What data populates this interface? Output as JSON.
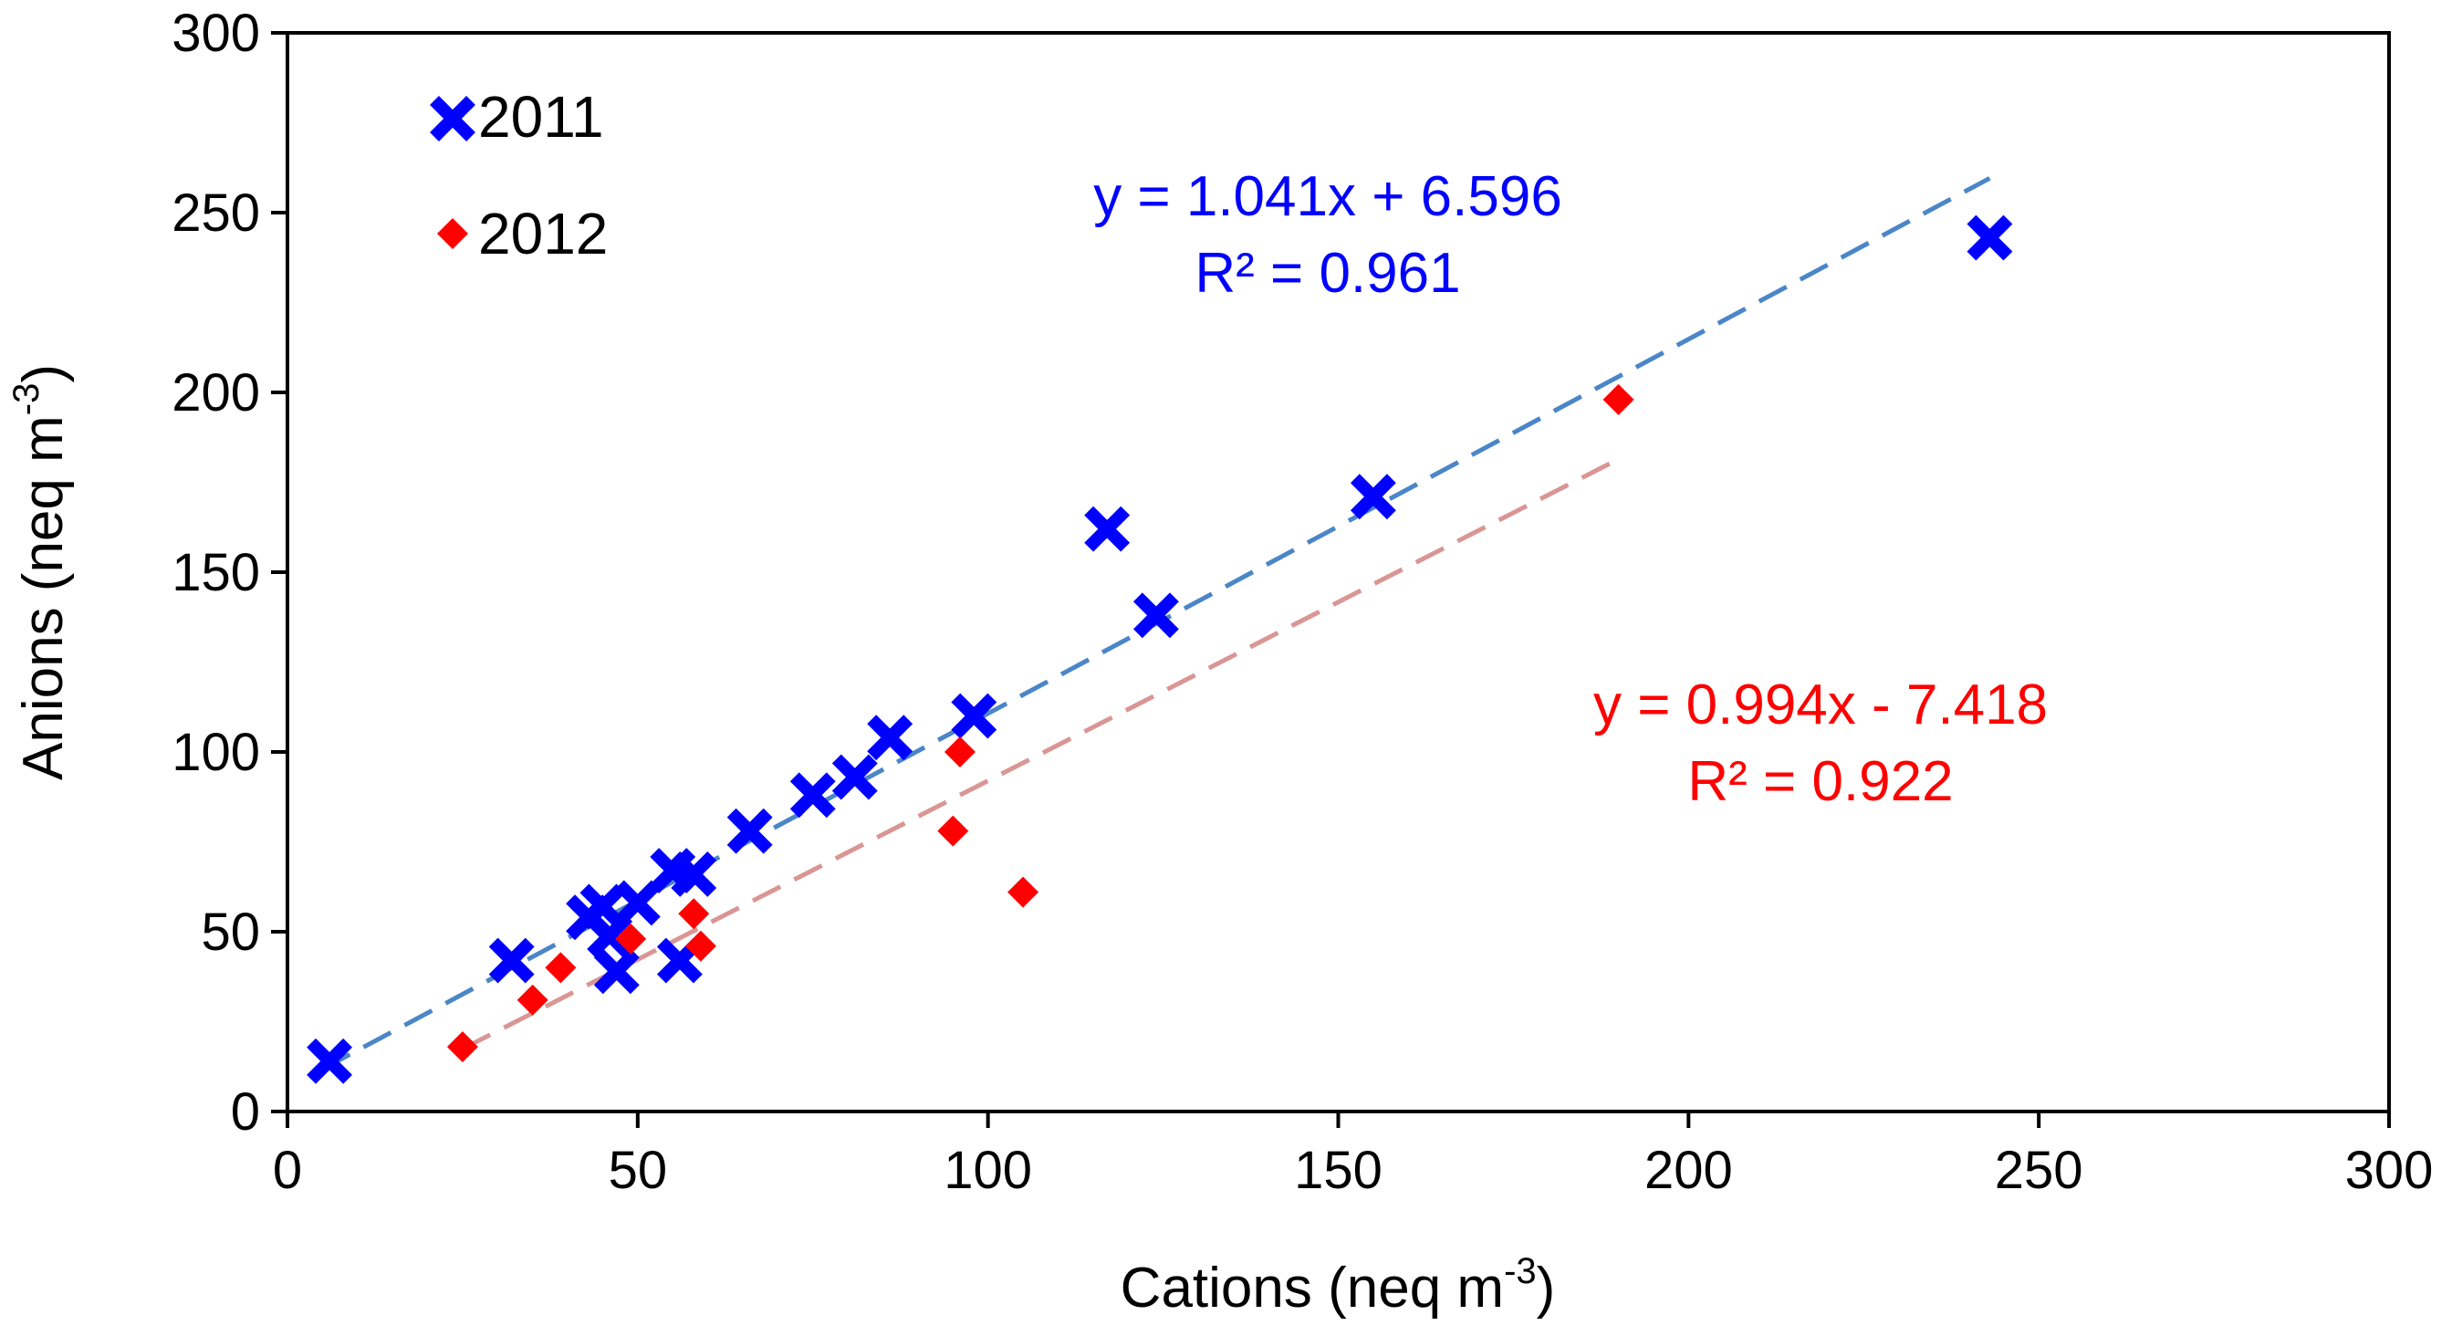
{
  "chart_data": {
    "type": "scatter",
    "title": "",
    "xlabel": "Cations (neq m",
    "xlabel_sup": "-3",
    "xlabel_end": ")",
    "ylabel": "Anions (neq m",
    "ylabel_sup": "-3",
    "ylabel_end": ")",
    "xlim": [
      0,
      300
    ],
    "ylim": [
      0,
      300
    ],
    "xticks": [
      "0",
      "50",
      "100",
      "150",
      "200",
      "250",
      "300"
    ],
    "yticks": [
      "0",
      "50",
      "100",
      "150",
      "200",
      "250",
      "300"
    ],
    "grid": false,
    "legend_position": "top-left",
    "series": [
      {
        "name": "2011",
        "marker": "x",
        "color": "#0000ff",
        "trend_color": "#4a86c8",
        "equation": "y = 1.041x + 6.596",
        "r2": "R² = 0.961",
        "trendline": {
          "slope": 1.041,
          "intercept": 6.596,
          "x_range": [
            5,
            243
          ]
        },
        "x": [
          6,
          32,
          43,
          45,
          46,
          47,
          50,
          55,
          56,
          58,
          66,
          75,
          81,
          86,
          98,
          117,
          124,
          155,
          243
        ],
        "y": [
          14,
          42,
          54,
          57,
          49,
          39,
          58,
          67,
          42,
          66,
          78,
          88,
          93,
          104,
          110,
          162,
          138,
          171,
          243
        ]
      },
      {
        "name": "2012",
        "marker": "diamond",
        "color": "#ff0000",
        "trend_color": "#d99694",
        "equation": "y = 0.994x - 7.418",
        "r2": "R² = 0.922",
        "trendline": {
          "slope": 0.994,
          "intercept": -7.418,
          "x_range": [
            25,
            190
          ]
        },
        "x": [
          25,
          35,
          39,
          49,
          58,
          59,
          95,
          96,
          105,
          190
        ],
        "y": [
          18,
          31,
          40,
          48,
          55,
          46,
          78,
          100,
          61,
          198
        ]
      }
    ]
  }
}
